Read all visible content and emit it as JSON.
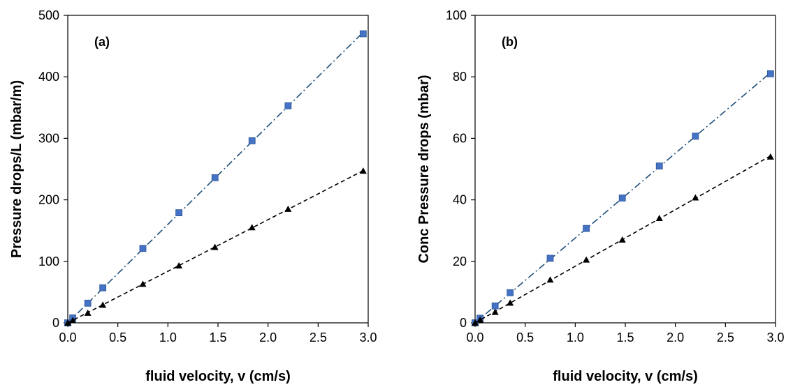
{
  "colors": {
    "square_series": "#4472C4",
    "square_fit": "#1F4E79",
    "triangle_series": "#000000",
    "triangle_fit": "#000000"
  },
  "chart_data": [
    {
      "type": "scatter",
      "panel_label": "(a)",
      "xlabel": "fluid velocity, v (cm/s)",
      "ylabel": "Pressure drops/L (mbar/m)",
      "xlim": [
        0,
        3.0
      ],
      "ylim": [
        0,
        500
      ],
      "xticks": [
        "0.0",
        "0.5",
        "1.0",
        "1.5",
        "2.0",
        "2.5",
        "3.0"
      ],
      "yticks": [
        "0",
        "100",
        "200",
        "300",
        "400",
        "500"
      ],
      "grid": false,
      "series": [
        {
          "marker": "square",
          "line": "dash-dot",
          "x": [
            0,
            0.05,
            0.2,
            0.35,
            0.75,
            1.11,
            1.47,
            1.84,
            2.2,
            2.95
          ],
          "y": [
            0,
            8,
            32,
            57,
            121,
            179,
            236,
            296,
            353,
            470
          ]
        },
        {
          "marker": "triangle",
          "line": "dashed",
          "x": [
            0,
            0.05,
            0.2,
            0.35,
            0.75,
            1.11,
            1.47,
            1.84,
            2.2,
            2.95
          ],
          "y": [
            0,
            4,
            16,
            29,
            63,
            93,
            123,
            155,
            185,
            247
          ]
        }
      ]
    },
    {
      "type": "scatter",
      "panel_label": "(b)",
      "xlabel": "fluid velocity, v (cm/s)",
      "ylabel": "Conc Pressure drops (mbar)",
      "xlim": [
        0,
        3.0
      ],
      "ylim": [
        0,
        100
      ],
      "xticks": [
        "0.0",
        "0.5",
        "1.0",
        "1.5",
        "2.0",
        "2.5",
        "3.0"
      ],
      "yticks": [
        "0",
        "20",
        "40",
        "60",
        "80",
        "100"
      ],
      "grid": false,
      "series": [
        {
          "marker": "square",
          "line": "dash-dot",
          "x": [
            0,
            0.05,
            0.2,
            0.35,
            0.75,
            1.11,
            1.47,
            1.84,
            2.2,
            2.95
          ],
          "y": [
            0,
            1.5,
            5.5,
            9.8,
            21,
            30.7,
            40.6,
            51,
            60.7,
            81
          ]
        },
        {
          "marker": "triangle",
          "line": "dashed",
          "x": [
            0,
            0.05,
            0.2,
            0.35,
            0.75,
            1.11,
            1.47,
            1.84,
            2.2,
            2.95
          ],
          "y": [
            0,
            1,
            3.5,
            6.5,
            14,
            20.5,
            27,
            34,
            40.7,
            54
          ]
        }
      ]
    }
  ]
}
